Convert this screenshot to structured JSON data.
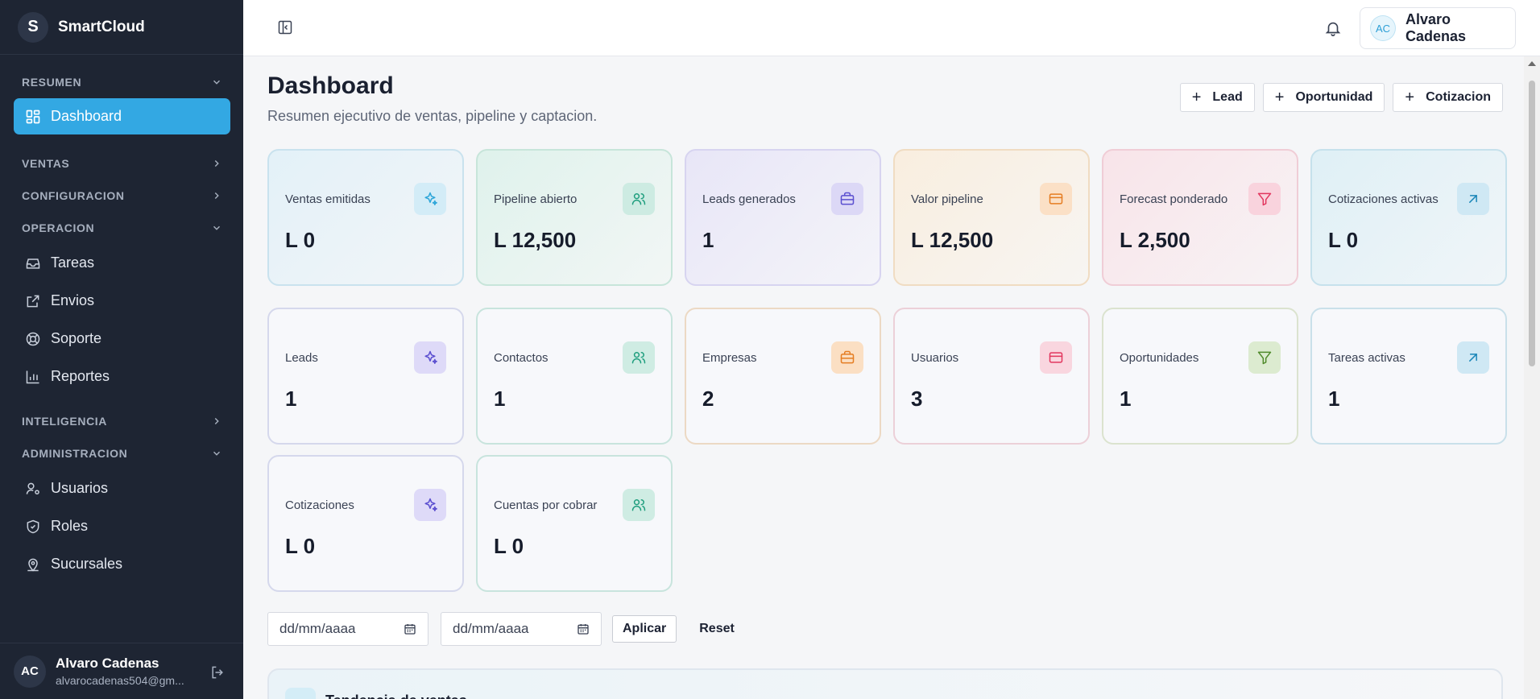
{
  "brand": {
    "logo_letter": "S",
    "name": "SmartCloud"
  },
  "sidebar": {
    "sections": {
      "resumen": "RESUMEN",
      "ventas": "VENTAS",
      "configuracion": "CONFIGURACION",
      "operacion": "OPERACION",
      "inteligencia": "INTELIGENCIA",
      "administracion": "ADMINISTRACION"
    },
    "items": {
      "dashboard": "Dashboard",
      "tareas": "Tareas",
      "envios": "Envios",
      "soporte": "Soporte",
      "reportes": "Reportes",
      "usuarios": "Usuarios",
      "roles": "Roles",
      "sucursales": "Sucursales"
    },
    "user": {
      "initials": "AC",
      "name": "Alvaro Cadenas",
      "email": "alvarocadenas504@gm..."
    }
  },
  "topbar": {
    "user_initials": "AC",
    "user_name": "Alvaro Cadenas"
  },
  "page": {
    "title": "Dashboard",
    "subtitle": "Resumen ejecutivo de ventas, pipeline y captacion.",
    "actions": {
      "lead": "Lead",
      "oportunidad": "Oportunidad",
      "cotizacion": "Cotizacion"
    }
  },
  "cards": [
    {
      "label": "Ventas emitidas",
      "value": "L 0",
      "icon": "sparkles-icon"
    },
    {
      "label": "Pipeline abierto",
      "value": "L 12,500",
      "icon": "users-icon"
    },
    {
      "label": "Leads generados",
      "value": "1",
      "icon": "briefcase-icon"
    },
    {
      "label": "Valor pipeline",
      "value": "L 12,500",
      "icon": "credit-card-icon"
    },
    {
      "label": "Forecast ponderado",
      "value": "L 2,500",
      "icon": "filter-icon"
    },
    {
      "label": "Cotizaciones activas",
      "value": "L 0",
      "icon": "arrow-up-right-icon"
    },
    {
      "label": "Leads",
      "value": "1",
      "icon": "sparkles-icon"
    },
    {
      "label": "Contactos",
      "value": "1",
      "icon": "users-icon"
    },
    {
      "label": "Empresas",
      "value": "2",
      "icon": "briefcase-icon"
    },
    {
      "label": "Usuarios",
      "value": "3",
      "icon": "credit-card-icon"
    },
    {
      "label": "Oportunidades",
      "value": "1",
      "icon": "filter-icon"
    },
    {
      "label": "Tareas activas",
      "value": "1",
      "icon": "arrow-up-right-icon"
    },
    {
      "label": "Cotizaciones",
      "value": "L 0",
      "icon": "sparkles-icon"
    },
    {
      "label": "Cuentas por cobrar",
      "value": "L 0",
      "icon": "users-icon"
    }
  ],
  "filters": {
    "date_from_placeholder": "dd/mm/aaaa",
    "date_to_placeholder": "dd/mm/aaaa",
    "apply": "Aplicar",
    "reset": "Reset"
  },
  "bottom_panel": {
    "title": "Tendencia de ventas"
  }
}
